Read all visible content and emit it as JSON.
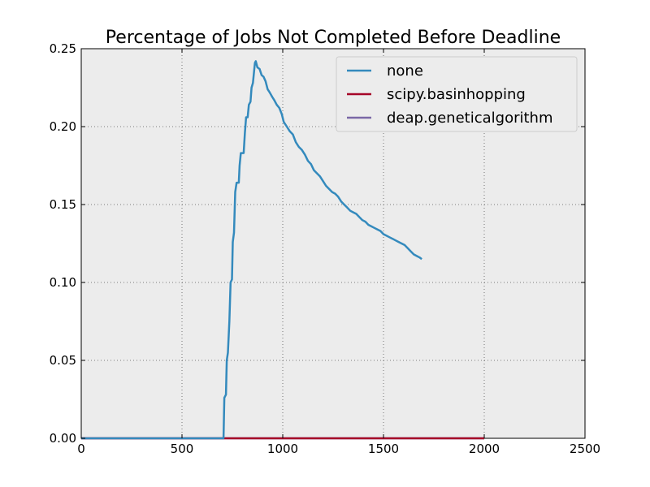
{
  "chart_data": {
    "type": "line",
    "title": "Percentage of Jobs Not Completed Before Deadline",
    "xlabel": "",
    "ylabel": "",
    "xlim": [
      0,
      2500
    ],
    "ylim": [
      0,
      0.25
    ],
    "x_ticks": [
      0,
      500,
      1000,
      1500,
      2000,
      2500
    ],
    "x_tick_labels": [
      "0",
      "500",
      "1000",
      "1500",
      "2000",
      "2500"
    ],
    "y_ticks": [
      0,
      0.05,
      0.1,
      0.15,
      0.2,
      0.25
    ],
    "y_tick_labels": [
      "0.00",
      "0.05",
      "0.10",
      "0.15",
      "0.20",
      "0.25"
    ],
    "grid": true,
    "legend_position": "top-right",
    "background": "#ececec",
    "series": [
      {
        "name": "none",
        "color": "#348abd",
        "points": [
          [
            0,
            0
          ],
          [
            700,
            0
          ],
          [
            706,
            0.0
          ],
          [
            710,
            0.026
          ],
          [
            718,
            0.028
          ],
          [
            722,
            0.05
          ],
          [
            728,
            0.055
          ],
          [
            735,
            0.075
          ],
          [
            741,
            0.1
          ],
          [
            748,
            0.102
          ],
          [
            752,
            0.126
          ],
          [
            758,
            0.132
          ],
          [
            764,
            0.158
          ],
          [
            771,
            0.164
          ],
          [
            782,
            0.164
          ],
          [
            786,
            0.175
          ],
          [
            792,
            0.183
          ],
          [
            806,
            0.183
          ],
          [
            812,
            0.196
          ],
          [
            818,
            0.206
          ],
          [
            826,
            0.206
          ],
          [
            832,
            0.214
          ],
          [
            840,
            0.216
          ],
          [
            845,
            0.225
          ],
          [
            852,
            0.228
          ],
          [
            858,
            0.236
          ],
          [
            862,
            0.241
          ],
          [
            866,
            0.242
          ],
          [
            874,
            0.238
          ],
          [
            885,
            0.237
          ],
          [
            895,
            0.233
          ],
          [
            905,
            0.232
          ],
          [
            915,
            0.229
          ],
          [
            925,
            0.224
          ],
          [
            935,
            0.222
          ],
          [
            948,
            0.219
          ],
          [
            958,
            0.217
          ],
          [
            970,
            0.214
          ],
          [
            983,
            0.212
          ],
          [
            995,
            0.208
          ],
          [
            1005,
            0.203
          ],
          [
            1020,
            0.2
          ],
          [
            1035,
            0.197
          ],
          [
            1050,
            0.195
          ],
          [
            1065,
            0.19
          ],
          [
            1080,
            0.187
          ],
          [
            1095,
            0.185
          ],
          [
            1110,
            0.182
          ],
          [
            1125,
            0.178
          ],
          [
            1140,
            0.176
          ],
          [
            1155,
            0.172
          ],
          [
            1170,
            0.17
          ],
          [
            1185,
            0.168
          ],
          [
            1200,
            0.165
          ],
          [
            1215,
            0.162
          ],
          [
            1230,
            0.16
          ],
          [
            1245,
            0.158
          ],
          [
            1260,
            0.157
          ],
          [
            1275,
            0.155
          ],
          [
            1290,
            0.152
          ],
          [
            1305,
            0.15
          ],
          [
            1320,
            0.148
          ],
          [
            1335,
            0.146
          ],
          [
            1350,
            0.145
          ],
          [
            1365,
            0.144
          ],
          [
            1380,
            0.142
          ],
          [
            1395,
            0.14
          ],
          [
            1410,
            0.139
          ],
          [
            1425,
            0.137
          ],
          [
            1440,
            0.136
          ],
          [
            1455,
            0.135
          ],
          [
            1470,
            0.134
          ],
          [
            1485,
            0.133
          ],
          [
            1500,
            0.131
          ],
          [
            1515,
            0.13
          ],
          [
            1530,
            0.129
          ],
          [
            1545,
            0.128
          ],
          [
            1560,
            0.127
          ],
          [
            1575,
            0.126
          ],
          [
            1590,
            0.125
          ],
          [
            1605,
            0.124
          ],
          [
            1620,
            0.122
          ],
          [
            1635,
            0.12
          ],
          [
            1650,
            0.118
          ],
          [
            1665,
            0.117
          ],
          [
            1680,
            0.116
          ],
          [
            1690,
            0.115
          ]
        ]
      },
      {
        "name": "scipy.basinhopping",
        "color": "#a60628",
        "points": [
          [
            0,
            0
          ],
          [
            2000,
            0
          ]
        ]
      },
      {
        "name": "deap.geneticalgorithm",
        "color": "#7a68a6",
        "points": [
          [
            0,
            0
          ],
          [
            2000,
            0
          ]
        ]
      }
    ]
  }
}
